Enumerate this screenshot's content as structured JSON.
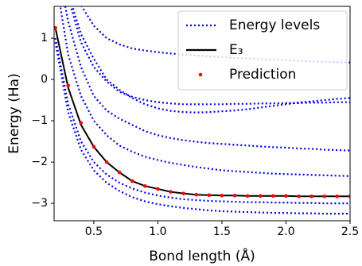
{
  "chart_data": {
    "type": "line",
    "xlabel": "Bond length (Å)",
    "ylabel": "Energy (Ha)",
    "xlim": [
      0.19,
      2.5
    ],
    "ylim": [
      -3.42,
      1.77
    ],
    "xticks": [
      0.5,
      {
        "value": 1.0,
        "label": "1.0"
      },
      1.5,
      {
        "value": 2.0,
        "label": "2.0"
      },
      2.5
    ],
    "yticks": [
      {
        "value": -3,
        "label": "−3"
      },
      {
        "value": -2,
        "label": "−2"
      },
      {
        "value": -1,
        "label": "−1"
      },
      0,
      1
    ],
    "legend": "upper right",
    "x": [
      0.2,
      0.3,
      0.4,
      0.5,
      0.6,
      0.7,
      0.8,
      0.9,
      1.0,
      1.1,
      1.2,
      1.3,
      1.4,
      1.5,
      1.6,
      1.7,
      1.8,
      1.9,
      2.0,
      2.1,
      2.2,
      2.3,
      2.4,
      2.5
    ],
    "series": [
      {
        "name": "Energy levels",
        "color": "#0000ee",
        "style": "dotted",
        "curves": [
          [
            0.9,
            -0.8,
            -1.7,
            -2.2,
            -2.5,
            -2.7,
            -2.85,
            -2.95,
            -3.02,
            -3.07,
            -3.11,
            -3.14,
            -3.17,
            -3.19,
            -3.2,
            -3.21,
            -3.22,
            -3.23,
            -3.23,
            -3.24,
            -3.24,
            -3.25,
            -3.25,
            -3.25
          ],
          [
            1.0,
            -0.6,
            -1.5,
            -2.0,
            -2.3,
            -2.5,
            -2.64,
            -2.74,
            -2.81,
            -2.86,
            -2.9,
            -2.92,
            -2.94,
            -2.95,
            -2.96,
            -2.97,
            -2.97,
            -2.98,
            -2.98,
            -2.99,
            -2.99,
            -3.0,
            -3.0,
            -3.0
          ],
          [
            2.5,
            0.6,
            -0.4,
            -1.0,
            -1.35,
            -1.6,
            -1.75,
            -1.87,
            -1.95,
            -2.02,
            -2.07,
            -2.12,
            -2.16,
            -2.2,
            -2.22,
            -2.24,
            -2.26,
            -2.28,
            -2.29,
            -2.3,
            -2.31,
            -2.32,
            -2.33,
            -2.34
          ],
          [
            3.0,
            1.4,
            0.3,
            -0.4,
            -0.75,
            -0.95,
            -1.1,
            -1.25,
            -1.35,
            -1.42,
            -1.47,
            -1.51,
            -1.54,
            -1.56,
            -1.58,
            -1.6,
            -1.62,
            -1.64,
            -1.65,
            -1.67,
            -1.68,
            -1.7,
            -1.71,
            -1.72
          ],
          [
            3.5,
            2.0,
            0.9,
            0.3,
            -0.05,
            -0.3,
            -0.42,
            -0.5,
            -0.55,
            -0.58,
            -0.6,
            -0.6,
            -0.6,
            -0.6,
            -0.59,
            -0.59,
            -0.58,
            -0.58,
            -0.57,
            -0.57,
            -0.56,
            -0.56,
            -0.55,
            -0.55
          ],
          [
            3.6,
            2.1,
            1.1,
            0.5,
            0.0,
            -0.25,
            -0.45,
            -0.6,
            -0.7,
            -0.76,
            -0.79,
            -0.8,
            -0.79,
            -0.77,
            -0.75,
            -0.72,
            -0.68,
            -0.64,
            -0.6,
            -0.56,
            -0.53,
            -0.5,
            -0.47,
            -0.45
          ],
          [
            4.5,
            2.8,
            1.8,
            1.3,
            1.0,
            0.85,
            0.75,
            0.7,
            0.66,
            0.63,
            0.6,
            0.58,
            0.56,
            0.54,
            0.52,
            0.51,
            0.49,
            0.48,
            0.47,
            0.45,
            0.44,
            0.43,
            0.42,
            0.41
          ]
        ]
      },
      {
        "name": "E₃",
        "color": "#000000",
        "style": "solid",
        "values": [
          1.25,
          -0.2,
          -1.1,
          -1.63,
          -2.0,
          -2.25,
          -2.46,
          -2.58,
          -2.65,
          -2.72,
          -2.76,
          -2.79,
          -2.8,
          -2.81,
          -2.81,
          -2.82,
          -2.82,
          -2.82,
          -2.82,
          -2.83,
          -2.83,
          -2.83,
          -2.83,
          -2.83
        ]
      },
      {
        "name": "Prediction",
        "color": "#ff0000",
        "style": "points",
        "values": [
          1.25,
          -0.15,
          -1.05,
          -1.63,
          -2.0,
          -2.25,
          -2.46,
          -2.58,
          -2.65,
          -2.72,
          -2.76,
          -2.79,
          -2.8,
          -2.81,
          -2.81,
          -2.82,
          -2.82,
          -2.82,
          -2.82,
          -2.83,
          -2.83,
          -2.83,
          -2.83,
          -2.83
        ]
      }
    ]
  }
}
